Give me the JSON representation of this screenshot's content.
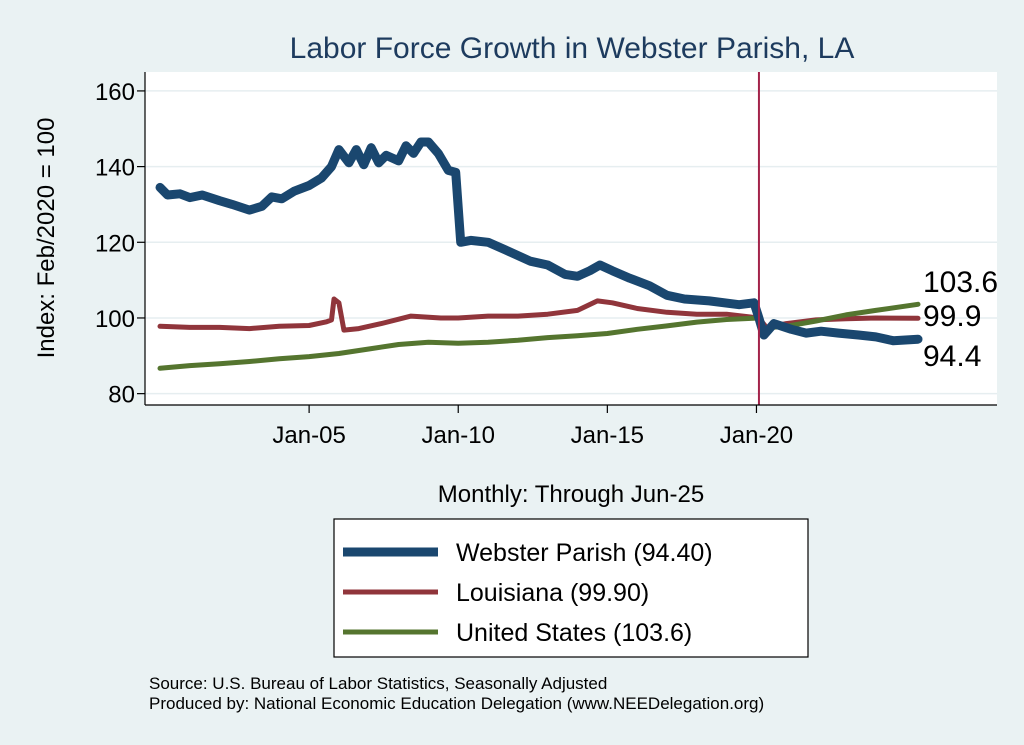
{
  "chart_data": {
    "type": "line",
    "title": "Labor Force Growth in Webster Parish, LA",
    "xlabel": "Monthly: Through Jun-25",
    "ylabel": "Index: Feb/2020 = 100",
    "x_ticks": [
      "Jan-05",
      "Jan-10",
      "Jan-15",
      "Jan-20"
    ],
    "y_ticks": [
      80,
      100,
      120,
      140,
      160
    ],
    "ylim": [
      77,
      165
    ],
    "xlim": [
      "2000-01",
      "2025-06"
    ],
    "grid": true,
    "reference_line": {
      "x": "2020-02",
      "color": "#a3234a"
    },
    "series": [
      {
        "name": "Webster Parish  (94.40)",
        "color": "#1a476f",
        "end_label": "94.4",
        "points": [
          [
            "2000-01",
            134.5
          ],
          [
            "2000-04",
            132.5
          ],
          [
            "2000-09",
            132.8
          ],
          [
            "2001-01",
            131.8
          ],
          [
            "2001-06",
            132.5
          ],
          [
            "2002-01",
            131.0
          ],
          [
            "2002-06",
            130.0
          ],
          [
            "2003-01",
            128.5
          ],
          [
            "2003-06",
            129.5
          ],
          [
            "2003-10",
            132.0
          ],
          [
            "2004-02",
            131.5
          ],
          [
            "2004-07",
            133.5
          ],
          [
            "2005-01",
            135.0
          ],
          [
            "2005-06",
            137.0
          ],
          [
            "2005-10",
            140.0
          ],
          [
            "2006-01",
            144.5
          ],
          [
            "2006-05",
            141.0
          ],
          [
            "2006-08",
            144.5
          ],
          [
            "2006-11",
            140.5
          ],
          [
            "2007-02",
            145.0
          ],
          [
            "2007-05",
            141.0
          ],
          [
            "2007-08",
            143.0
          ],
          [
            "2008-01",
            141.5
          ],
          [
            "2008-04",
            145.5
          ],
          [
            "2008-07",
            143.5
          ],
          [
            "2008-10",
            146.5
          ],
          [
            "2009-01",
            146.5
          ],
          [
            "2009-05",
            143.5
          ],
          [
            "2009-09",
            139.0
          ],
          [
            "2009-12",
            138.5
          ],
          [
            "2010-02",
            120.0
          ],
          [
            "2010-06",
            120.5
          ],
          [
            "2011-01",
            120.0
          ],
          [
            "2011-08",
            118.0
          ],
          [
            "2012-06",
            115.0
          ],
          [
            "2013-01",
            114.0
          ],
          [
            "2013-08",
            111.5
          ],
          [
            "2014-01",
            111.0
          ],
          [
            "2014-06",
            112.5
          ],
          [
            "2014-10",
            114.0
          ],
          [
            "2015-03",
            112.5
          ],
          [
            "2015-10",
            110.5
          ],
          [
            "2016-06",
            108.5
          ],
          [
            "2017-01",
            106.0
          ],
          [
            "2017-08",
            105.0
          ],
          [
            "2018-06",
            104.5
          ],
          [
            "2019-06",
            103.5
          ],
          [
            "2019-12",
            104.0
          ],
          [
            "2020-02",
            100.0
          ],
          [
            "2020-04",
            95.5
          ],
          [
            "2020-08",
            98.5
          ],
          [
            "2021-03",
            97.0
          ],
          [
            "2021-09",
            96.0
          ],
          [
            "2022-03",
            96.5
          ],
          [
            "2022-10",
            96.0
          ],
          [
            "2023-06",
            95.5
          ],
          [
            "2024-01",
            95.0
          ],
          [
            "2024-08",
            94.0
          ],
          [
            "2025-06",
            94.4
          ]
        ]
      },
      {
        "name": "Louisiana (99.90)",
        "color": "#90353b",
        "end_label": "99.9",
        "points": [
          [
            "2000-01",
            97.8
          ],
          [
            "2001-01",
            97.5
          ],
          [
            "2002-01",
            97.5
          ],
          [
            "2003-01",
            97.2
          ],
          [
            "2004-01",
            97.8
          ],
          [
            "2005-01",
            98.0
          ],
          [
            "2005-08",
            99.0
          ],
          [
            "2005-10",
            99.5
          ],
          [
            "2005-11",
            105.0
          ],
          [
            "2006-01",
            104.0
          ],
          [
            "2006-03",
            96.8
          ],
          [
            "2006-09",
            97.2
          ],
          [
            "2007-06",
            98.5
          ],
          [
            "2008-06",
            100.5
          ],
          [
            "2009-06",
            100.0
          ],
          [
            "2010-01",
            100.0
          ],
          [
            "2011-01",
            100.5
          ],
          [
            "2012-01",
            100.5
          ],
          [
            "2013-01",
            101.0
          ],
          [
            "2014-01",
            102.0
          ],
          [
            "2014-09",
            104.5
          ],
          [
            "2015-03",
            104.0
          ],
          [
            "2016-01",
            102.5
          ],
          [
            "2017-01",
            101.5
          ],
          [
            "2018-01",
            101.0
          ],
          [
            "2019-01",
            101.0
          ],
          [
            "2020-02",
            100.0
          ],
          [
            "2020-05",
            97.5
          ],
          [
            "2021-01",
            98.5
          ],
          [
            "2022-01",
            99.5
          ],
          [
            "2023-01",
            99.8
          ],
          [
            "2024-01",
            100.0
          ],
          [
            "2025-06",
            99.9
          ]
        ]
      },
      {
        "name": "United States (103.6)",
        "color": "#55752f",
        "end_label": "103.6",
        "points": [
          [
            "2000-01",
            86.7
          ],
          [
            "2001-01",
            87.4
          ],
          [
            "2002-01",
            87.9
          ],
          [
            "2003-01",
            88.5
          ],
          [
            "2004-01",
            89.2
          ],
          [
            "2005-01",
            89.8
          ],
          [
            "2006-01",
            90.6
          ],
          [
            "2007-01",
            91.8
          ],
          [
            "2008-01",
            93.0
          ],
          [
            "2009-01",
            93.6
          ],
          [
            "2010-01",
            93.3
          ],
          [
            "2011-01",
            93.6
          ],
          [
            "2012-01",
            94.1
          ],
          [
            "2013-01",
            94.8
          ],
          [
            "2014-01",
            95.3
          ],
          [
            "2015-01",
            95.9
          ],
          [
            "2016-01",
            97.0
          ],
          [
            "2017-01",
            97.9
          ],
          [
            "2018-01",
            98.9
          ],
          [
            "2019-01",
            99.6
          ],
          [
            "2020-02",
            100.0
          ],
          [
            "2020-04",
            95.3
          ],
          [
            "2020-07",
            97.5
          ],
          [
            "2021-01",
            97.8
          ],
          [
            "2022-01",
            99.2
          ],
          [
            "2023-01",
            100.8
          ],
          [
            "2024-01",
            102.0
          ],
          [
            "2025-06",
            103.6
          ]
        ]
      }
    ]
  },
  "footer": {
    "source": "Source: U.S. Bureau of Labor Statistics, Seasonally Adjusted",
    "produced_by": "Produced by: National Economic Education Delegation (www.NEEDelegation.org)"
  }
}
